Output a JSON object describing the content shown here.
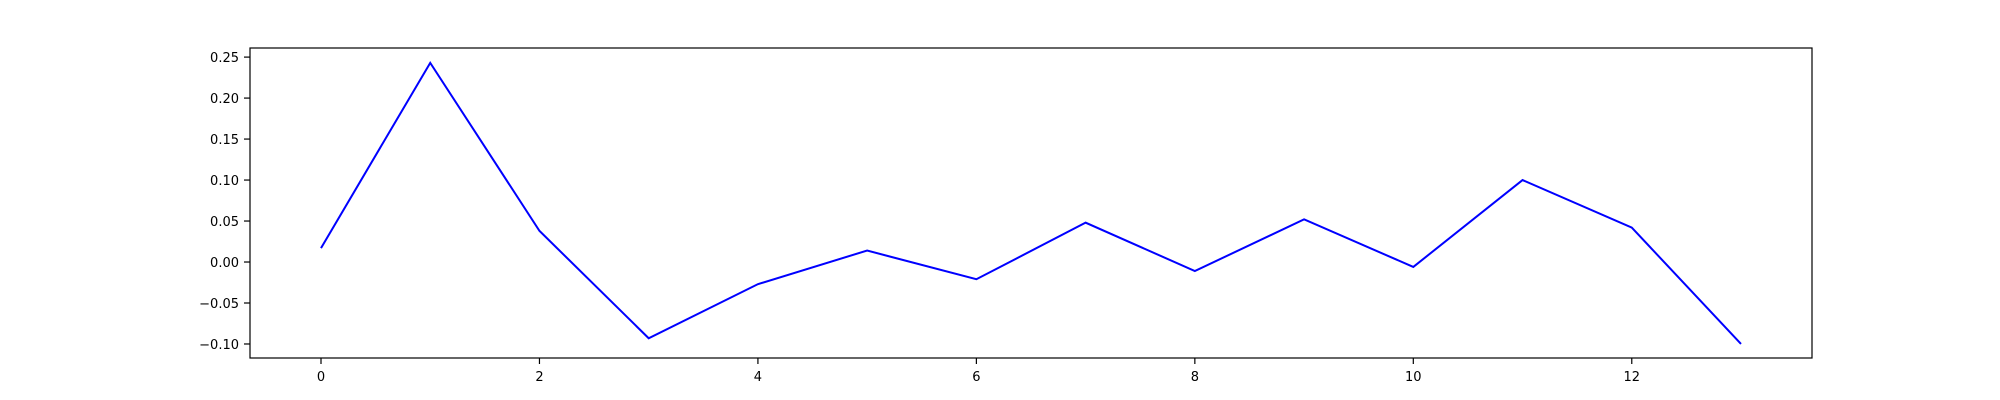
{
  "chart_data": {
    "type": "line",
    "title": "",
    "xlabel": "",
    "ylabel": "",
    "xlim": [
      -0.65,
      13.65
    ],
    "ylim": [
      -0.1171,
      0.2611
    ],
    "grid": false,
    "legend": "none",
    "x_ticks": [
      0,
      2,
      4,
      6,
      8,
      10,
      12
    ],
    "x_tick_labels": [
      "0",
      "2",
      "4",
      "6",
      "8",
      "10",
      "12"
    ],
    "y_ticks": [
      -0.1,
      -0.05,
      0.0,
      0.05,
      0.1,
      0.15,
      0.2,
      0.25
    ],
    "y_tick_labels": [
      "−0.10",
      "−0.05",
      "0.00",
      "0.05",
      "0.10",
      "0.15",
      "0.20",
      "0.25"
    ],
    "series": [
      {
        "color": "#0000ff",
        "x": [
          0,
          1,
          2,
          3,
          4,
          5,
          6,
          7,
          8,
          9,
          10,
          11,
          12,
          13
        ],
        "y": [
          0.017,
          0.243,
          0.038,
          -0.093,
          -0.027,
          0.014,
          -0.021,
          0.048,
          -0.011,
          0.052,
          -0.006,
          0.1,
          0.042,
          -0.1
        ]
      }
    ]
  }
}
